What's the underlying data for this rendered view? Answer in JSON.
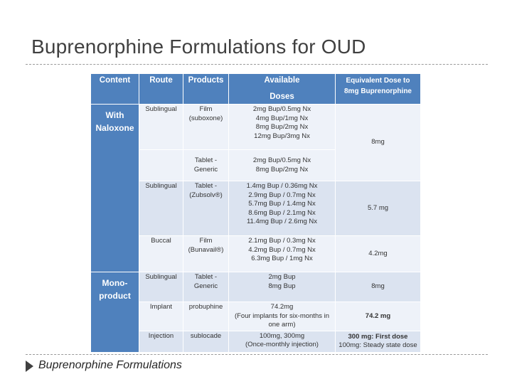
{
  "title": "Buprenorphine Formulations for OUD",
  "caption": "Buprenorphine Formulations",
  "colors": {
    "header": "#4f81bd",
    "row_dark": "#dbe3f0",
    "row_light": "#eef2f9"
  },
  "table": {
    "headers": {
      "content": "Content",
      "route": "Route",
      "products": "Products",
      "available": "Available",
      "doses": "Doses",
      "equivalent_1": "Equivalent Dose to",
      "equivalent_2": "8mg Buprenorphine"
    },
    "categories": {
      "with_naloxone": "With Naloxone",
      "mono_product": "Mono-product"
    },
    "rows": [
      {
        "route": "Sublingual",
        "product": "Film (suboxone)",
        "doses": [
          "2mg Bup/0.5mg Nx",
          "4mg Bup/1mg Nx",
          "8mg Bup/2mg Nx",
          "12mg Bup/3mg Nx"
        ],
        "equivalent": "8mg"
      },
      {
        "product": "Tablet - Generic",
        "doses": [
          "2mg Bup/0.5mg Nx",
          "8mg Bup/2mg Nx"
        ]
      },
      {
        "route": "Sublingual",
        "product": "Tablet - (Zubsolv®)",
        "doses": [
          "1.4mg Bup / 0.36mg Nx",
          "2.9mg Bup / 0.7mg Nx",
          "5.7mg Bup / 1.4mg Nx",
          "8.6mg Bup / 2.1mg Nx",
          "11.4mg Bup / 2.6mg Nx"
        ],
        "equivalent": "5.7 mg"
      },
      {
        "route": "Buccal",
        "product": "Film (Bunavail®)",
        "doses": [
          "2.1mg Bup / 0.3mg Nx",
          "4.2mg Bup / 0.7mg Nx",
          "6.3mg Bup / 1mg Nx"
        ],
        "equivalent": "4.2mg"
      },
      {
        "route": "Sublingual",
        "product": "Tablet - Generic",
        "doses": [
          "2mg Bup",
          "8mg Bup"
        ],
        "equivalent": "8mg"
      },
      {
        "route": "Implant",
        "product": "probuphine",
        "doses": [
          "74.2mg",
          "(Four implants for six-months in one arm)"
        ],
        "equivalent": "74.2 mg"
      },
      {
        "route": "Injection",
        "product": "sublocade",
        "doses": [
          "100mg, 300mg",
          "(Once-monthly injection)"
        ],
        "equivalent_1": "300 mg: First dose",
        "equivalent_2": "100mg: Steady state dose"
      }
    ]
  }
}
